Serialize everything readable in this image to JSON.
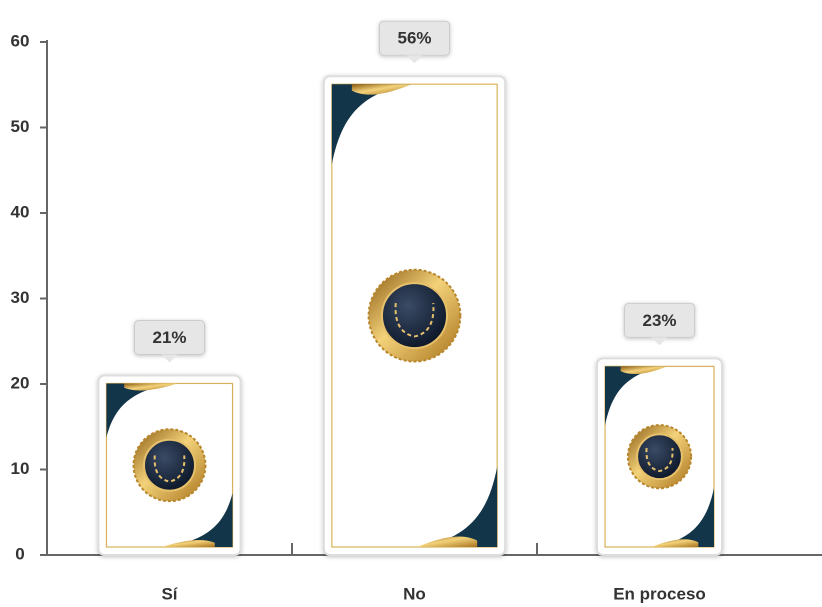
{
  "chart_data": {
    "type": "bar",
    "categories": [
      "Sí",
      "No",
      "En proceso"
    ],
    "values": [
      21,
      56,
      23
    ],
    "value_labels": [
      "21%",
      "56%",
      "23%"
    ],
    "ylim": [
      0,
      60
    ],
    "yticks": [
      0,
      10,
      20,
      30,
      40,
      50,
      60
    ],
    "grid": false
  }
}
